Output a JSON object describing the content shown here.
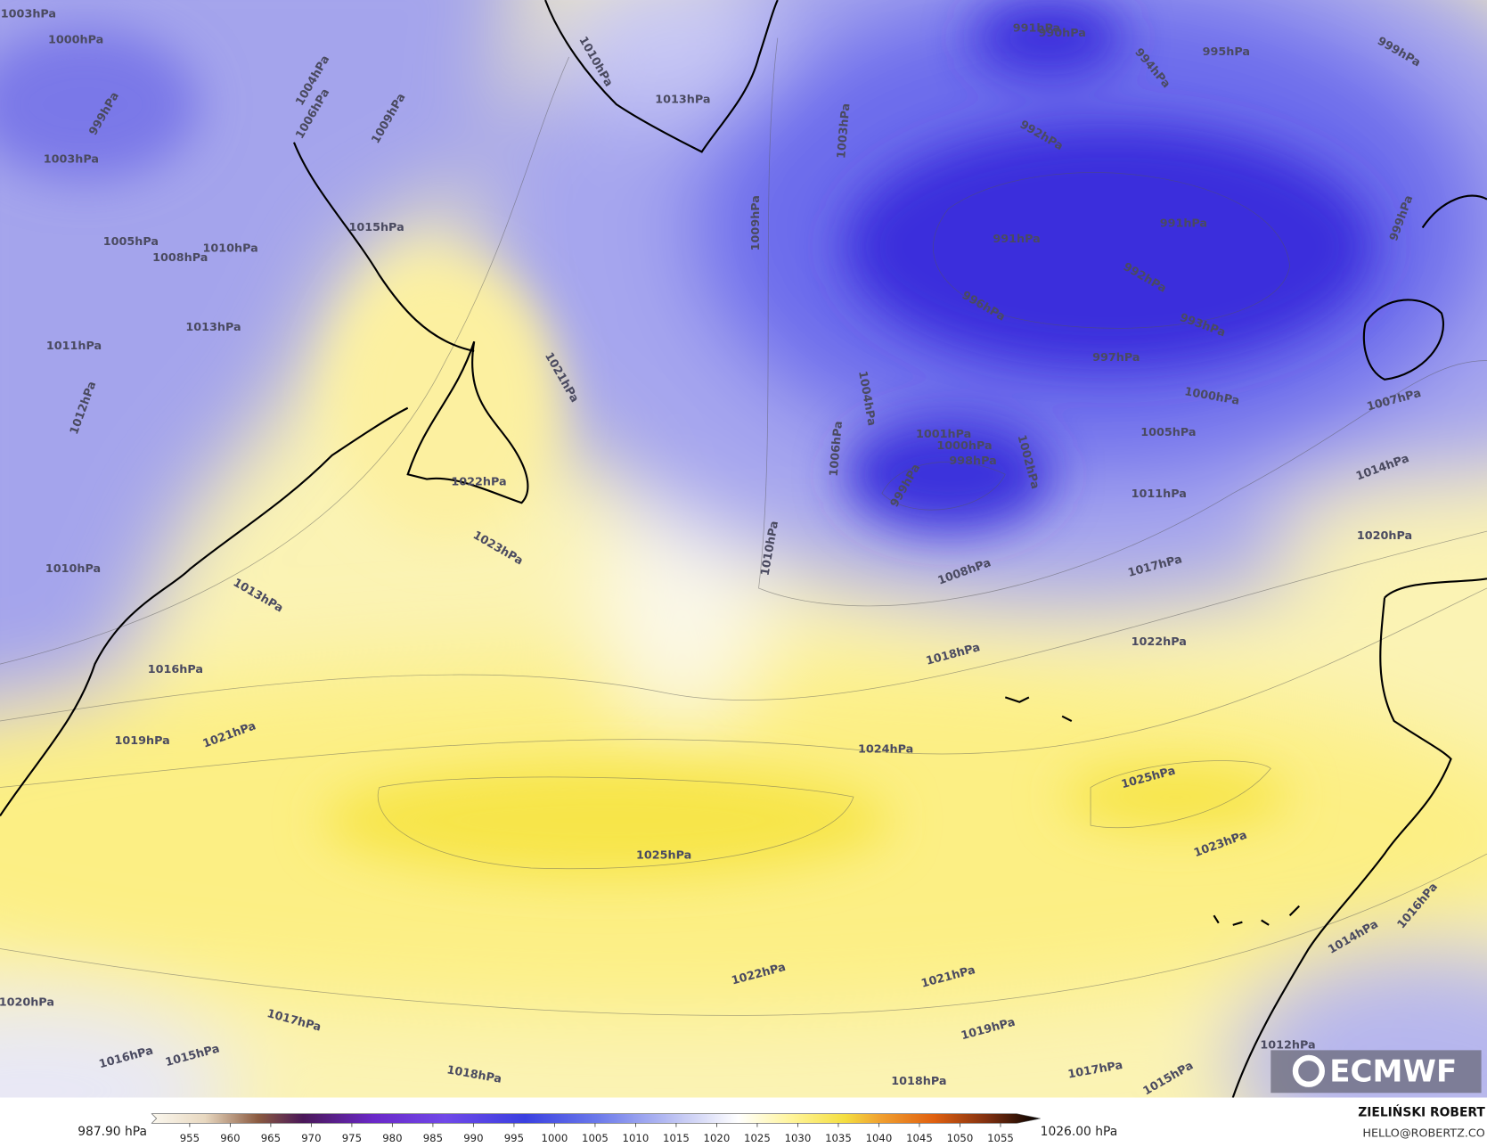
{
  "map": {
    "contour_labels": [
      "1003hPa",
      "1000hPa",
      "999hPa",
      "1003hPa",
      "1005hPa",
      "1008hPa",
      "1010hPa",
      "1011hPa",
      "1012hPa",
      "1013hPa",
      "1015hPa",
      "1009hPa",
      "1006hPa",
      "1004hPa",
      "1010hPa",
      "1013hPa",
      "1021hPa",
      "1022hPa",
      "1023hPa",
      "1013hPa",
      "1010hPa",
      "1016hPa",
      "1019hPa",
      "1021hPa",
      "1009hPa",
      "1003hPa",
      "1010hPa",
      "1004hPa",
      "1006hPa",
      "991hPa",
      "990hPa",
      "995hPa",
      "994hPa",
      "992hPa",
      "991hPa",
      "991hPa",
      "992hPa",
      "996hPa",
      "993hPa",
      "997hPa",
      "1000hPa",
      "1007hPa",
      "1005hPa",
      "1001hPa",
      "1000hPa",
      "998hPa",
      "999hPa",
      "1002hPa",
      "1014hPa",
      "1011hPa",
      "1020hPa",
      "1017hPa",
      "1008hPa",
      "1018hPa",
      "1022hPa",
      "1024hPa",
      "1025hPa",
      "1025hPa",
      "1023hPa",
      "1022hPa",
      "1021hPa",
      "1019hPa",
      "1017hPa",
      "1018hPa",
      "1018hPa",
      "1017hPa",
      "1016hPa",
      "1015hPa",
      "1020hPa",
      "1015hPa",
      "1012hPa",
      "1014hPa",
      "1016hPa",
      "999hPa",
      "999hPa"
    ]
  },
  "logo": "ECMWF",
  "colorbar": {
    "ticks": [
      955,
      960,
      965,
      970,
      975,
      980,
      985,
      990,
      995,
      1000,
      1005,
      1010,
      1015,
      1020,
      1025,
      1030,
      1035,
      1040,
      1045,
      1050,
      1055
    ],
    "min_label": "987.90 hPa",
    "max_label": "1026.00 hPa"
  },
  "credit": {
    "author": "ZIELIŃSKI ROBERT",
    "email": "HELLO@ROBERTZ.CO"
  }
}
